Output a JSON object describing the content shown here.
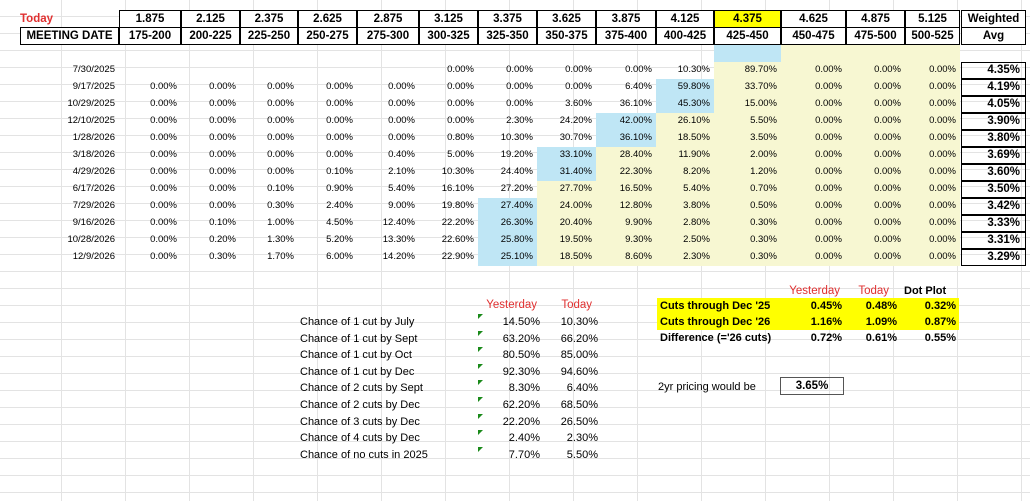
{
  "header": {
    "today_label": "Today",
    "meeting_date_label": "MEETING DATE",
    "weighted_label": "Weighted",
    "avg_label": "Avg",
    "midpoints": [
      "1.875",
      "2.125",
      "2.375",
      "2.625",
      "2.875",
      "3.125",
      "3.375",
      "3.625",
      "3.875",
      "4.125",
      "4.375",
      "4.625",
      "4.875",
      "5.125"
    ],
    "ranges": [
      "175-200",
      "200-225",
      "225-250",
      "250-275",
      "275-300",
      "300-325",
      "325-350",
      "350-375",
      "375-400",
      "400-425",
      "425-450",
      "450-475",
      "475-500",
      "500-525"
    ]
  },
  "rows": [
    {
      "date": "7/30/2025",
      "vals": [
        "",
        "",
        "",
        "",
        "",
        "0.00%",
        "0.00%",
        "0.00%",
        "0.00%",
        "10.30%",
        "89.70%",
        "0.00%",
        "0.00%",
        "0.00%"
      ],
      "avg": "4.35%"
    },
    {
      "date": "9/17/2025",
      "vals": [
        "0.00%",
        "0.00%",
        "0.00%",
        "0.00%",
        "0.00%",
        "0.00%",
        "0.00%",
        "0.00%",
        "6.40%",
        "59.80%",
        "33.70%",
        "0.00%",
        "0.00%",
        "0.00%"
      ],
      "avg": "4.19%"
    },
    {
      "date": "10/29/2025",
      "vals": [
        "0.00%",
        "0.00%",
        "0.00%",
        "0.00%",
        "0.00%",
        "0.00%",
        "0.00%",
        "3.60%",
        "36.10%",
        "45.30%",
        "15.00%",
        "0.00%",
        "0.00%",
        "0.00%"
      ],
      "avg": "4.05%"
    },
    {
      "date": "12/10/2025",
      "vals": [
        "0.00%",
        "0.00%",
        "0.00%",
        "0.00%",
        "0.00%",
        "0.00%",
        "2.30%",
        "24.20%",
        "42.00%",
        "26.10%",
        "5.50%",
        "0.00%",
        "0.00%",
        "0.00%"
      ],
      "avg": "3.90%"
    },
    {
      "date": "1/28/2026",
      "vals": [
        "0.00%",
        "0.00%",
        "0.00%",
        "0.00%",
        "0.00%",
        "0.80%",
        "10.30%",
        "30.70%",
        "36.10%",
        "18.50%",
        "3.50%",
        "0.00%",
        "0.00%",
        "0.00%"
      ],
      "avg": "3.80%"
    },
    {
      "date": "3/18/2026",
      "vals": [
        "0.00%",
        "0.00%",
        "0.00%",
        "0.00%",
        "0.40%",
        "5.00%",
        "19.20%",
        "33.10%",
        "28.40%",
        "11.90%",
        "2.00%",
        "0.00%",
        "0.00%",
        "0.00%"
      ],
      "avg": "3.69%"
    },
    {
      "date": "4/29/2026",
      "vals": [
        "0.00%",
        "0.00%",
        "0.00%",
        "0.10%",
        "2.10%",
        "10.30%",
        "24.40%",
        "31.40%",
        "22.30%",
        "8.20%",
        "1.20%",
        "0.00%",
        "0.00%",
        "0.00%"
      ],
      "avg": "3.60%"
    },
    {
      "date": "6/17/2026",
      "vals": [
        "0.00%",
        "0.00%",
        "0.10%",
        "0.90%",
        "5.40%",
        "16.10%",
        "27.20%",
        "27.70%",
        "16.50%",
        "5.40%",
        "0.70%",
        "0.00%",
        "0.00%",
        "0.00%"
      ],
      "avg": "3.50%"
    },
    {
      "date": "7/29/2026",
      "vals": [
        "0.00%",
        "0.00%",
        "0.30%",
        "2.40%",
        "9.00%",
        "19.80%",
        "27.40%",
        "24.00%",
        "12.80%",
        "3.80%",
        "0.50%",
        "0.00%",
        "0.00%",
        "0.00%"
      ],
      "avg": "3.42%"
    },
    {
      "date": "9/16/2026",
      "vals": [
        "0.00%",
        "0.10%",
        "1.00%",
        "4.50%",
        "12.40%",
        "22.20%",
        "26.30%",
        "20.40%",
        "9.90%",
        "2.80%",
        "0.30%",
        "0.00%",
        "0.00%",
        "0.00%"
      ],
      "avg": "3.33%"
    },
    {
      "date": "10/28/2026",
      "vals": [
        "0.00%",
        "0.20%",
        "1.30%",
        "5.20%",
        "13.30%",
        "22.60%",
        "25.80%",
        "19.50%",
        "9.30%",
        "2.50%",
        "0.30%",
        "0.00%",
        "0.00%",
        "0.00%"
      ],
      "avg": "3.31%"
    },
    {
      "date": "12/9/2026",
      "vals": [
        "0.00%",
        "0.30%",
        "1.70%",
        "6.00%",
        "14.20%",
        "22.90%",
        "25.10%",
        "18.50%",
        "8.60%",
        "2.30%",
        "0.30%",
        "0.00%",
        "0.00%",
        "0.00%"
      ],
      "avg": "3.29%"
    }
  ],
  "blue_cells": [
    [
      1,
      9
    ],
    [
      2,
      9
    ],
    [
      3,
      8
    ],
    [
      4,
      8
    ],
    [
      5,
      7
    ],
    [
      6,
      7
    ],
    [
      8,
      6
    ],
    [
      9,
      6
    ],
    [
      10,
      6
    ],
    [
      11,
      6
    ]
  ],
  "chances": {
    "yesterday_label": "Yesterday",
    "today_label": "Today",
    "items": [
      {
        "label": "Chance of 1 cut by July",
        "yesterday": "14.50%",
        "today": "10.30%"
      },
      {
        "label": "Chance of 1 cut by Sept",
        "yesterday": "63.20%",
        "today": "66.20%"
      },
      {
        "label": "Chance of 1 cut by Oct",
        "yesterday": "80.50%",
        "today": "85.00%"
      },
      {
        "label": "Chance of 1 cut by Dec",
        "yesterday": "92.30%",
        "today": "94.60%"
      },
      {
        "label": "Chance of 2 cuts by Sept",
        "yesterday": "8.30%",
        "today": "6.40%"
      },
      {
        "label": "Chance of 2 cuts by Dec",
        "yesterday": "62.20%",
        "today": "68.50%"
      },
      {
        "label": "Chance of 3 cuts by Dec",
        "yesterday": "22.20%",
        "today": "26.50%"
      },
      {
        "label": "Chance of 4 cuts by Dec",
        "yesterday": "2.40%",
        "today": "2.30%"
      },
      {
        "label": "Chance of no cuts in 2025",
        "yesterday": "7.70%",
        "today": "5.50%"
      }
    ]
  },
  "cuts": {
    "yesterday_label": "Yesterday",
    "today_label": "Today",
    "dot_plot_label": "Dot Plot",
    "items": [
      {
        "label": "Cuts through Dec '25",
        "yesterday": "0.45%",
        "today": "0.48%",
        "dot": "0.32%"
      },
      {
        "label": "Cuts through Dec '26",
        "yesterday": "1.16%",
        "today": "1.09%",
        "dot": "0.87%"
      },
      {
        "label": "Difference (='26 cuts)",
        "yesterday": "0.72%",
        "today": "0.61%",
        "dot": "0.55%"
      }
    ],
    "pricing_label": "2yr pricing would be",
    "pricing_value": "3.65%"
  },
  "colors": {
    "highlight": "#ffff00",
    "blue": "#bfe6f5",
    "cream": "#f7f7d2",
    "red": "#e03030",
    "triangle": "#1a8a1a"
  }
}
